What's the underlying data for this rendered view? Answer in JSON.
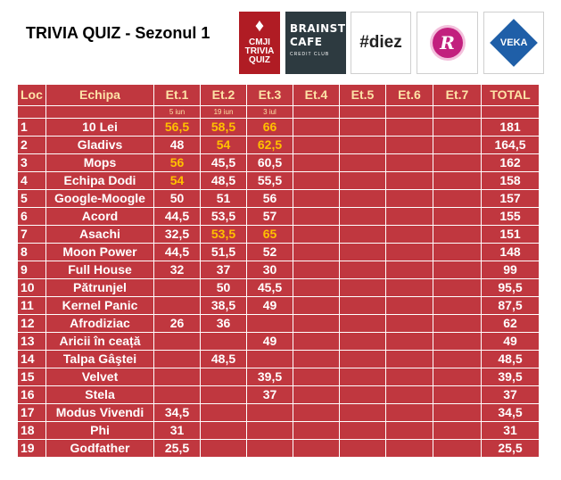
{
  "title": "TRIVIA QUIZ - Sezonul 1",
  "logos": {
    "cmji": {
      "line1": "CMJI",
      "line2": "TRIVIA",
      "line3": "QUIZ"
    },
    "brainstorm": {
      "line1": "BRAINSTORM",
      "line2": "CAFE",
      "line3": "CREDIT CLUB"
    },
    "diez": "#diez",
    "r_logo": "R",
    "veka": "VEKA"
  },
  "colors": {
    "table_bg": "#c0373f",
    "header_text": "#fde3a7",
    "highlight": "#ffc000"
  },
  "table": {
    "headers": [
      "Loc",
      "Echipa",
      "Et.1",
      "Et.2",
      "Et.3",
      "Et.4",
      "Et.5",
      "Et.6",
      "Et.7",
      "TOTAL"
    ],
    "dates": [
      "",
      "",
      "5 iun",
      "19 iun",
      "3 iul",
      "",
      "",
      "",
      "",
      ""
    ],
    "rows": [
      {
        "cells": [
          "1",
          "10 Lei",
          "56,5",
          "58,5",
          "66",
          "",
          "",
          "",
          "",
          "181"
        ],
        "hl": [
          2,
          3,
          4
        ]
      },
      {
        "cells": [
          "2",
          "Gladivs",
          "48",
          "54",
          "62,5",
          "",
          "",
          "",
          "",
          "164,5"
        ],
        "hl": [
          3,
          4
        ]
      },
      {
        "cells": [
          "3",
          "Mops",
          "56",
          "45,5",
          "60,5",
          "",
          "",
          "",
          "",
          "162"
        ],
        "hl": [
          2
        ]
      },
      {
        "cells": [
          "4",
          "Echipa Dodi",
          "54",
          "48,5",
          "55,5",
          "",
          "",
          "",
          "",
          "158"
        ],
        "hl": [
          2
        ]
      },
      {
        "cells": [
          "5",
          "Google-Moogle",
          "50",
          "51",
          "56",
          "",
          "",
          "",
          "",
          "157"
        ],
        "hl": []
      },
      {
        "cells": [
          "6",
          "Acord",
          "44,5",
          "53,5",
          "57",
          "",
          "",
          "",
          "",
          "155"
        ],
        "hl": []
      },
      {
        "cells": [
          "7",
          "Asachi",
          "32,5",
          "53,5",
          "65",
          "",
          "",
          "",
          "",
          "151"
        ],
        "hl": [
          3,
          4
        ]
      },
      {
        "cells": [
          "8",
          "Moon Power",
          "44,5",
          "51,5",
          "52",
          "",
          "",
          "",
          "",
          "148"
        ],
        "hl": []
      },
      {
        "cells": [
          "9",
          "Full House",
          "32",
          "37",
          "30",
          "",
          "",
          "",
          "",
          "99"
        ],
        "hl": []
      },
      {
        "cells": [
          "10",
          "Pătrunjel",
          "",
          "50",
          "45,5",
          "",
          "",
          "",
          "",
          "95,5"
        ],
        "hl": []
      },
      {
        "cells": [
          "11",
          "Kernel Panic",
          "",
          "38,5",
          "49",
          "",
          "",
          "",
          "",
          "87,5"
        ],
        "hl": []
      },
      {
        "cells": [
          "12",
          "Afrodiziac",
          "26",
          "36",
          "",
          "",
          "",
          "",
          "",
          "62"
        ],
        "hl": []
      },
      {
        "cells": [
          "13",
          "Aricii în ceață",
          "",
          "",
          "49",
          "",
          "",
          "",
          "",
          "49"
        ],
        "hl": []
      },
      {
        "cells": [
          "14",
          "Talpa Gâştei",
          "",
          "48,5",
          "",
          "",
          "",
          "",
          "",
          "48,5"
        ],
        "hl": []
      },
      {
        "cells": [
          "15",
          "Velvet",
          "",
          "",
          "39,5",
          "",
          "",
          "",
          "",
          "39,5"
        ],
        "hl": []
      },
      {
        "cells": [
          "16",
          "Stela",
          "",
          "",
          "37",
          "",
          "",
          "",
          "",
          "37"
        ],
        "hl": []
      },
      {
        "cells": [
          "17",
          "Modus Vivendi",
          "34,5",
          "",
          "",
          "",
          "",
          "",
          "",
          "34,5"
        ],
        "hl": []
      },
      {
        "cells": [
          "18",
          "Phi",
          "31",
          "",
          "",
          "",
          "",
          "",
          "",
          "31"
        ],
        "hl": []
      },
      {
        "cells": [
          "19",
          "Godfather",
          "25,5",
          "",
          "",
          "",
          "",
          "",
          "",
          "25,5"
        ],
        "hl": []
      }
    ]
  }
}
